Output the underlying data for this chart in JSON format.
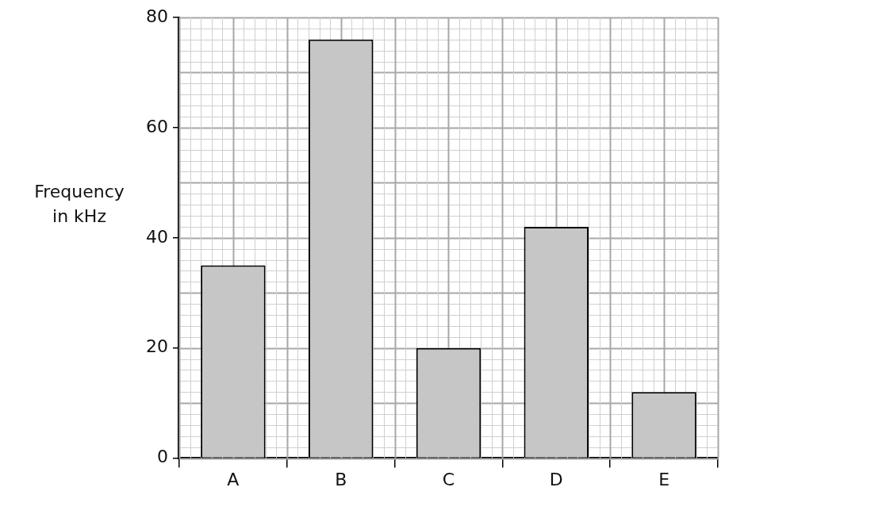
{
  "chart_data": {
    "type": "bar",
    "ylabel": "Frequency in kHz",
    "categories": [
      "A",
      "B",
      "C",
      "D",
      "E"
    ],
    "values": [
      35,
      76,
      20,
      42,
      12
    ],
    "color": "#c6c6c6",
    "ylim": [
      0,
      80
    ],
    "yticks": [
      0,
      20,
      40,
      60,
      80
    ],
    "grid": true
  }
}
